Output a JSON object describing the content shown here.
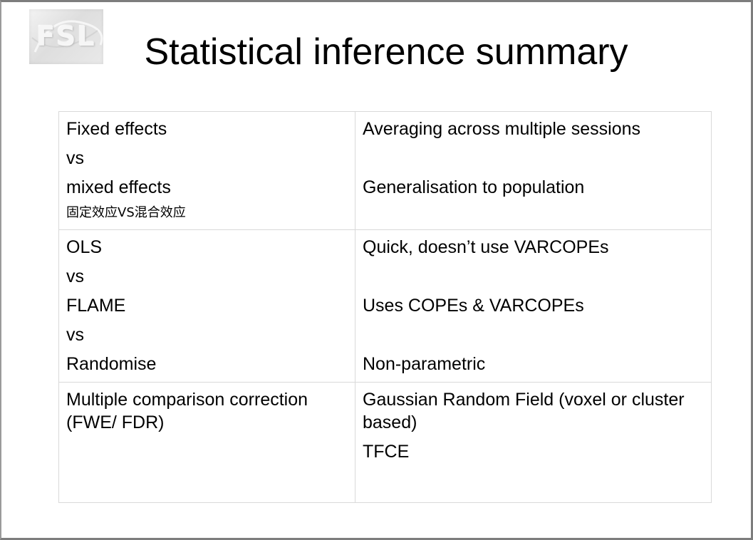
{
  "slide": {
    "logo_text": "FSL",
    "title": "Statistical inference summary"
  },
  "table": {
    "rows": [
      {
        "left": [
          "Fixed effects",
          "vs",
          "mixed effects",
          "固定效应VS混合效应"
        ],
        "right": [
          "Averaging across multiple sessions",
          "",
          "Generalisation to population"
        ]
      },
      {
        "left": [
          "OLS",
          "vs",
          "FLAME",
          "vs",
          "Randomise"
        ],
        "right": [
          "Quick, doesn’t use VARCOPEs",
          "",
          "Uses COPEs & VARCOPEs",
          "",
          "Non-parametric"
        ]
      },
      {
        "left": [
          "Multiple comparison correction (FWE/ FDR)"
        ],
        "right": [
          "Gaussian Random Field (voxel or cluster based)",
          "TFCE"
        ]
      }
    ]
  }
}
